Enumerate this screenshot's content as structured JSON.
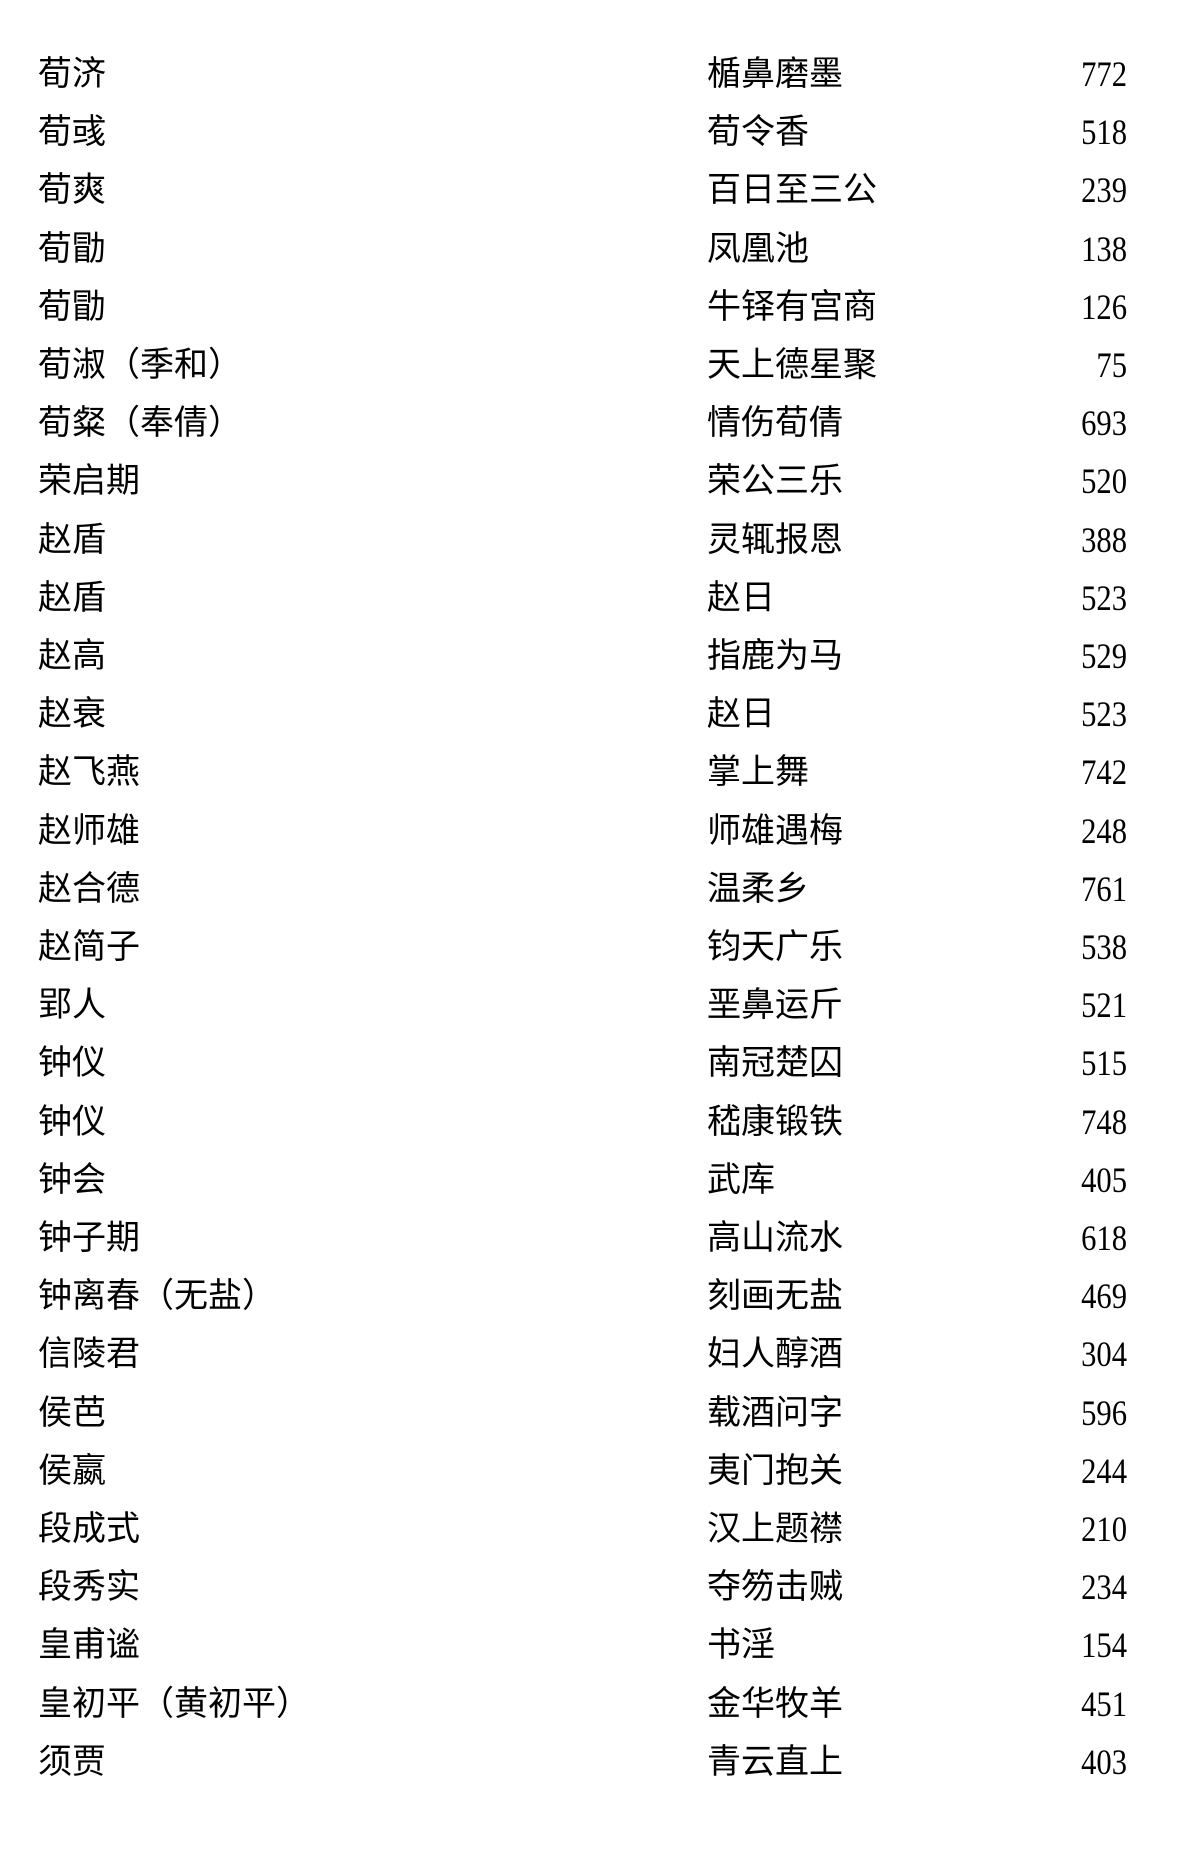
{
  "table": {
    "rows": [
      {
        "name": "荀济",
        "allusion": "楯鼻磨墨",
        "page": "772"
      },
      {
        "name": "荀彧",
        "allusion": "荀令香",
        "page": "518"
      },
      {
        "name": "荀爽",
        "allusion": "百日至三公",
        "page": "239"
      },
      {
        "name": "荀勖",
        "allusion": "凤凰池",
        "page": "138"
      },
      {
        "name": "荀勖",
        "allusion": "牛铎有宫商",
        "page": "126"
      },
      {
        "name": "荀淑（季和）",
        "allusion": "天上德星聚",
        "page": "75"
      },
      {
        "name": "荀粲（奉倩）",
        "allusion": "情伤荀倩",
        "page": "693"
      },
      {
        "name": "荣启期",
        "allusion": "荣公三乐",
        "page": "520"
      },
      {
        "name": "赵盾",
        "allusion": "灵辄报恩",
        "page": "388"
      },
      {
        "name": "赵盾",
        "allusion": "赵日",
        "page": "523"
      },
      {
        "name": "赵高",
        "allusion": "指鹿为马",
        "page": "529"
      },
      {
        "name": "赵衰",
        "allusion": "赵日",
        "page": "523"
      },
      {
        "name": "赵飞燕",
        "allusion": "掌上舞",
        "page": "742"
      },
      {
        "name": "赵师雄",
        "allusion": "师雄遇梅",
        "page": "248"
      },
      {
        "name": "赵合德",
        "allusion": "温柔乡",
        "page": "761"
      },
      {
        "name": "赵简子",
        "allusion": "钧天广乐",
        "page": "538"
      },
      {
        "name": "郢人",
        "allusion": "垩鼻运斤",
        "page": "521"
      },
      {
        "name": "钟仪",
        "allusion": "南冠楚囚",
        "page": "515"
      },
      {
        "name": "钟仪",
        "allusion": "嵇康锻铁",
        "page": "748"
      },
      {
        "name": "钟会",
        "allusion": "武库",
        "page": "405"
      },
      {
        "name": "钟子期",
        "allusion": "高山流水",
        "page": "618"
      },
      {
        "name": "钟离春（无盐）",
        "allusion": "刻画无盐",
        "page": "469"
      },
      {
        "name": "信陵君",
        "allusion": "妇人醇酒",
        "page": "304"
      },
      {
        "name": "侯芭",
        "allusion": "载酒问字",
        "page": "596"
      },
      {
        "name": "侯嬴",
        "allusion": "夷门抱关",
        "page": "244"
      },
      {
        "name": "段成式",
        "allusion": "汉上题襟",
        "page": "210"
      },
      {
        "name": "段秀实",
        "allusion": "夺笏击贼",
        "page": "234"
      },
      {
        "name": "皇甫谧",
        "allusion": "书淫",
        "page": "154"
      },
      {
        "name": "皇初平（黄初平）",
        "allusion": "金华牧羊",
        "page": "451"
      },
      {
        "name": "须贾",
        "allusion": "青云直上",
        "page": "403"
      }
    ]
  }
}
